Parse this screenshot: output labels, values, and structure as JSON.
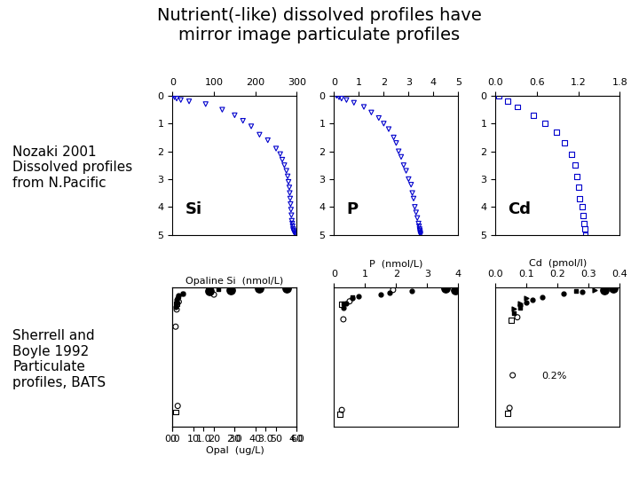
{
  "title": "Nutrient(-like) dissolved profiles have\nmirror image particulate profiles",
  "annotations": [
    "Nozaki 2001\nDissolved profiles\nfrom N.Pacific",
    "Sherrell and\nBoyle 1992\nParticulate\nprofiles, BATS"
  ],
  "chart_data": [
    {
      "type": "scatter",
      "annotations": [
        "Si"
      ],
      "xlim": [
        0,
        300
      ],
      "xticks": [
        0,
        100,
        200,
        300
      ],
      "ylim": [
        5.0,
        0
      ],
      "yticks": [
        0,
        1,
        2,
        3,
        4,
        5
      ],
      "series": [
        {
          "color": "#0000cc",
          "marker": "triangle_down_open",
          "x": [
            0,
            5,
            10,
            20,
            40,
            80,
            120,
            150,
            170,
            190,
            210,
            230,
            250,
            260,
            265,
            270,
            275,
            278,
            280,
            282,
            283,
            284,
            285,
            286,
            287,
            288,
            289,
            290,
            291,
            292,
            293,
            295,
            298,
            300
          ],
          "values": [
            0,
            0.05,
            0.1,
            0.15,
            0.2,
            0.3,
            0.5,
            0.7,
            0.9,
            1.1,
            1.4,
            1.6,
            1.9,
            2.1,
            2.3,
            2.5,
            2.7,
            2.9,
            3.1,
            3.3,
            3.5,
            3.7,
            3.9,
            4.1,
            4.3,
            4.5,
            4.6,
            4.7,
            4.8,
            4.85,
            4.9,
            4.95,
            4.98,
            5.0
          ]
        }
      ]
    },
    {
      "type": "scatter",
      "annotations": [
        "P"
      ],
      "xlim": [
        0,
        5
      ],
      "xticks": [
        0,
        1,
        2,
        3,
        4,
        5
      ],
      "ylim": [
        5.0,
        0
      ],
      "yticks": [
        0,
        1,
        2,
        3,
        4,
        5
      ],
      "series": [
        {
          "color": "#0000cc",
          "marker": "triangle_down_open",
          "x": [
            0.1,
            0.2,
            0.3,
            0.5,
            0.8,
            1.2,
            1.5,
            1.8,
            2.0,
            2.2,
            2.4,
            2.5,
            2.6,
            2.7,
            2.8,
            2.9,
            3.0,
            3.1,
            3.15,
            3.2,
            3.25,
            3.3,
            3.35,
            3.4,
            3.42,
            3.44,
            3.45,
            3.46,
            3.47,
            3.48
          ],
          "values": [
            0,
            0.05,
            0.1,
            0.15,
            0.25,
            0.4,
            0.6,
            0.8,
            1.0,
            1.2,
            1.5,
            1.7,
            2.0,
            2.2,
            2.5,
            2.7,
            3.0,
            3.2,
            3.5,
            3.7,
            4.0,
            4.2,
            4.4,
            4.6,
            4.7,
            4.8,
            4.85,
            4.9,
            4.95,
            5.0
          ]
        }
      ]
    },
    {
      "type": "scatter",
      "annotations": [
        "Cd"
      ],
      "xlim": [
        0.0,
        1.8
      ],
      "xticks": [
        0.0,
        0.6,
        1.2,
        1.8
      ],
      "ylim": [
        5.0,
        0
      ],
      "yticks": [
        0,
        1,
        2,
        3,
        4,
        5
      ],
      "series": [
        {
          "color": "#0000cc",
          "marker": "square_open",
          "x": [
            0.05,
            0.18,
            0.32,
            0.55,
            0.72,
            0.88,
            1.0,
            1.1,
            1.15,
            1.18,
            1.2,
            1.22,
            1.25,
            1.27,
            1.28,
            1.29,
            1.3
          ],
          "values": [
            0.0,
            0.2,
            0.4,
            0.7,
            1.0,
            1.3,
            1.7,
            2.1,
            2.5,
            2.9,
            3.3,
            3.7,
            4.0,
            4.3,
            4.6,
            4.8,
            5.0
          ]
        }
      ]
    },
    {
      "type": "scatter",
      "xlabel": "Opaline Si  (nmol/L)",
      "xlim": [
        0,
        60
      ],
      "xticks": [
        0,
        10,
        20,
        30,
        40,
        50,
        60
      ],
      "x2label": "Opal  (ug/L)",
      "x2lim": [
        0.0,
        4.0
      ],
      "x2ticks": [
        0.0,
        1.0,
        2.0,
        3.0,
        4.0
      ],
      "ylim": [
        3400,
        0
      ],
      "tick_labels": "x",
      "series": [
        {
          "color": "#000000",
          "marker": "circle_large",
          "x": [
            55,
            42,
            28,
            18
          ],
          "values": [
            10,
            30,
            60,
            90
          ]
        },
        {
          "color": "#000000",
          "marker": "circle",
          "x": [
            5,
            3,
            2.5,
            2,
            2,
            1.5
          ],
          "values": [
            150,
            200,
            250,
            310,
            380,
            480
          ]
        },
        {
          "color": "#000000",
          "marker": "square",
          "x": [
            22,
            5,
            3
          ],
          "values": [
            50,
            160,
            220
          ]
        },
        {
          "color": "#000000",
          "marker": "circle_open",
          "x": [
            3,
            2,
            1.5,
            20,
            2.5
          ],
          "values": [
            350,
            540,
            960,
            175,
            2900
          ]
        },
        {
          "color": "#000000",
          "marker": "square_open",
          "x": [
            2,
            1.5
          ],
          "values": [
            400,
            3050
          ]
        }
      ]
    },
    {
      "type": "scatter",
      "xlabel": "P  (nmol/L)",
      "xlim": [
        0,
        4
      ],
      "xticks": [
        0,
        1,
        2,
        3,
        4
      ],
      "ylim": [
        3400,
        0
      ],
      "tick_labels": "x",
      "series": [
        {
          "color": "#000000",
          "marker": "circle_large",
          "x": [
            3.6,
            3.9
          ],
          "values": [
            15,
            55
          ]
        },
        {
          "color": "#000000",
          "marker": "circle",
          "x": [
            2.5,
            1.8,
            1.5,
            0.8,
            0.6,
            0.4,
            0.3
          ],
          "values": [
            80,
            120,
            170,
            210,
            260,
            380,
            500
          ]
        },
        {
          "color": "#000000",
          "marker": "square",
          "x": [
            0.6,
            0.3
          ],
          "values": [
            240,
            400
          ]
        },
        {
          "color": "#000000",
          "marker": "circle_open",
          "x": [
            1.9,
            0.5,
            0.3,
            0.25
          ],
          "values": [
            60,
            340,
            780,
            3000
          ]
        },
        {
          "color": "#000000",
          "marker": "square_open",
          "x": [
            0.25,
            0.2
          ],
          "values": [
            420,
            3100
          ]
        }
      ]
    },
    {
      "type": "scatter",
      "xlabel": "Cd  (pmol/l)",
      "annotations": [
        "0.2%"
      ],
      "xlim": [
        0.0,
        0.4
      ],
      "xticks": [
        0.0,
        0.1,
        0.2,
        0.3,
        0.4
      ],
      "ylim": [
        3400,
        0
      ],
      "tick_labels": "x",
      "series": [
        {
          "color": "#000000",
          "marker": "circle_large",
          "x": [
            0.38,
            0.35
          ],
          "values": [
            15,
            55
          ]
        },
        {
          "color": "#000000",
          "marker": "circle",
          "x": [
            0.28,
            0.22,
            0.15,
            0.12,
            0.1,
            0.08
          ],
          "values": [
            100,
            160,
            230,
            300,
            370,
            440
          ]
        },
        {
          "color": "#000000",
          "marker": "triangle_right",
          "x": [
            0.32,
            0.1,
            0.08,
            0.06
          ],
          "values": [
            55,
            270,
            390,
            510
          ]
        },
        {
          "color": "#000000",
          "marker": "square",
          "x": [
            0.26,
            0.08,
            0.06
          ],
          "values": [
            95,
            490,
            630
          ]
        },
        {
          "color": "#000000",
          "marker": "circle_open",
          "x": [
            0.07,
            0.055,
            0.045
          ],
          "values": [
            730,
            2150,
            2950
          ]
        },
        {
          "color": "#000000",
          "marker": "square_open",
          "x": [
            0.05,
            0.04
          ],
          "values": [
            800,
            3080
          ]
        }
      ]
    }
  ]
}
